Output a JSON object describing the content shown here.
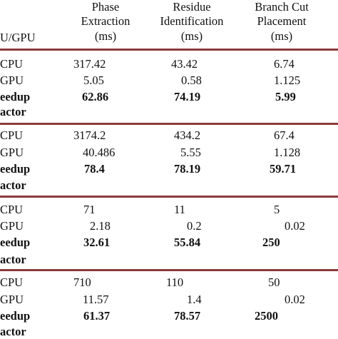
{
  "colors": {
    "rule": "#8b3a3a",
    "text": "#111111"
  },
  "header": {
    "col0": "U/GPU",
    "col1": [
      "Phase",
      "Extraction",
      "(ms)"
    ],
    "col2": [
      "Residue",
      "Identification",
      "(ms)"
    ],
    "col3": [
      "Branch Cut",
      "Placement",
      "(ms)"
    ]
  },
  "groups": [
    {
      "cpu_label": "CPU",
      "gpu_label": "GPU",
      "speed_label": "eedup",
      "factor_label": "actor",
      "cpu": [
        "317.42",
        "43.42",
        "6.74"
      ],
      "gpu": [
        "5.05",
        "0.58",
        "1.125"
      ],
      "speedup": [
        "62.86",
        "74.19",
        "5.99"
      ]
    },
    {
      "cpu_label": "CPU",
      "gpu_label": "GPU",
      "speed_label": "eedup",
      "factor_label": "actor",
      "cpu": [
        "3174.2",
        "434.2",
        "67.4"
      ],
      "gpu": [
        "40.486",
        "5.55",
        "1.128"
      ],
      "speedup": [
        "78.4",
        "78.19",
        "59.71"
      ]
    },
    {
      "cpu_label": "CPU",
      "gpu_label": "GPU",
      "speed_label": "eedup",
      "factor_label": "actor",
      "cpu": [
        "71",
        "11",
        "5"
      ],
      "gpu": [
        "2.18",
        "0.2",
        "0.02"
      ],
      "speedup": [
        "32.61",
        "55.84",
        "250"
      ]
    },
    {
      "cpu_label": "CPU",
      "gpu_label": "GPU",
      "speed_label": "eedup",
      "factor_label": "actor",
      "cpu": [
        "710",
        "110",
        "50"
      ],
      "gpu": [
        "11.57",
        "1.4",
        "0.02"
      ],
      "speedup": [
        "61.37",
        "78.57",
        "2500"
      ]
    }
  ]
}
